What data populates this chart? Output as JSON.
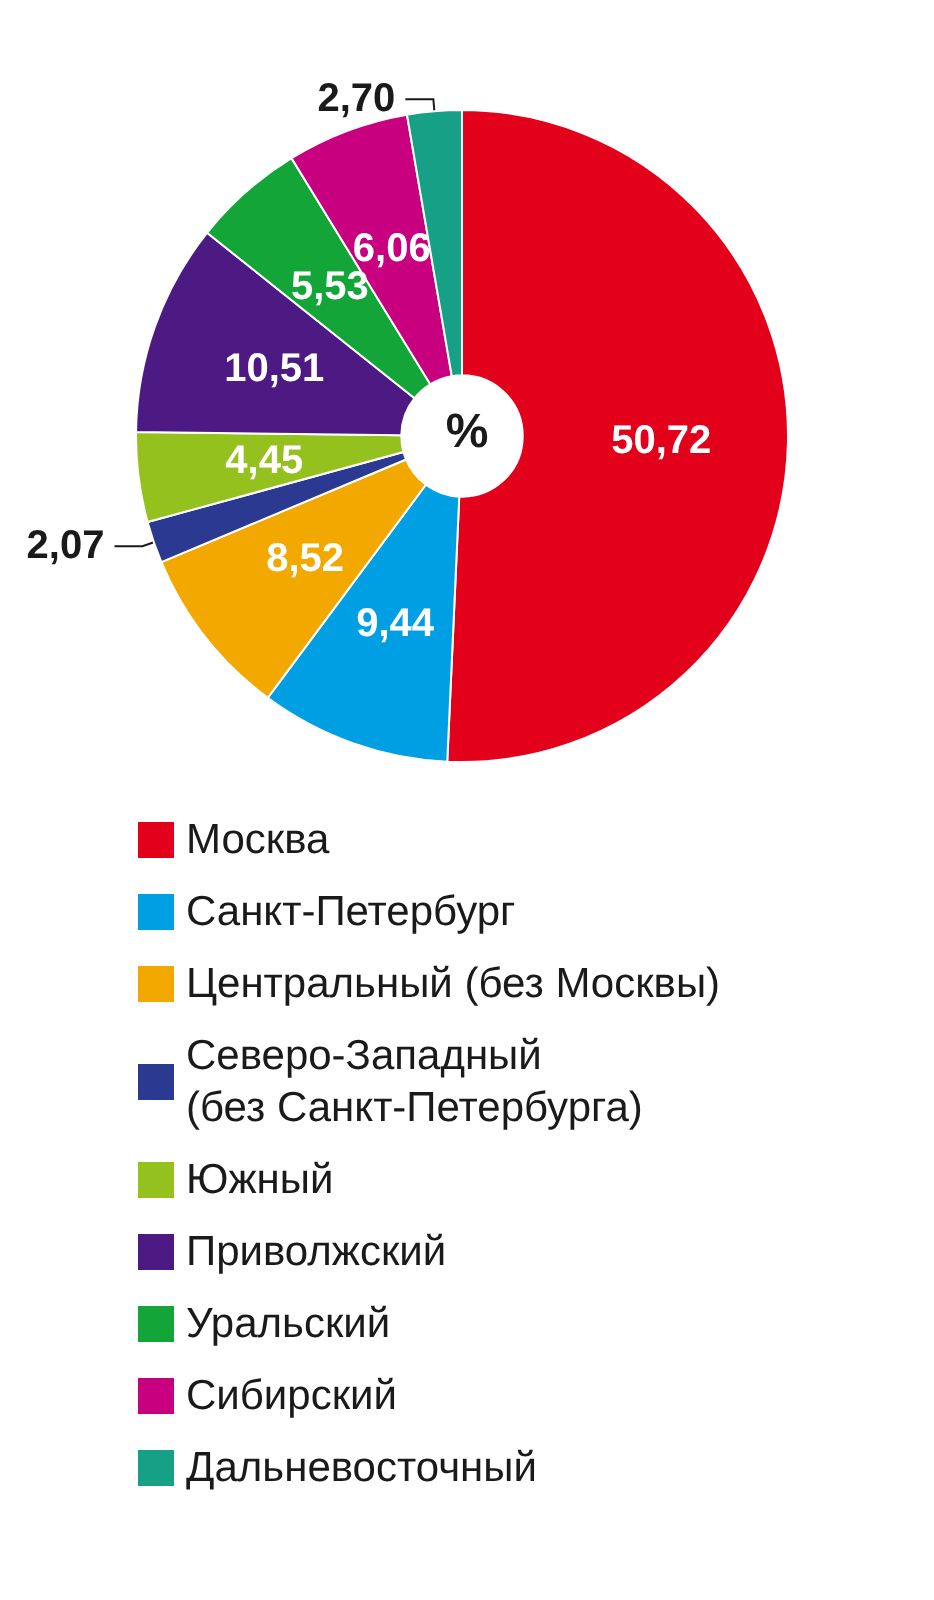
{
  "chart_data": {
    "type": "donut",
    "categories": [
      "Москва",
      "Санкт-Петербург",
      "Центральный (без Москвы)",
      "Северо-Западный\n(без Санкт-Петербурга)",
      "Южный",
      "Приволжский",
      "Уральский",
      "Сибирский",
      "Дальневосточный"
    ],
    "values": [
      50.72,
      9.44,
      8.52,
      2.07,
      4.45,
      10.51,
      5.53,
      6.06,
      2.7
    ],
    "value_labels": [
      "50,72",
      "9,44",
      "8,52",
      "2,07",
      "4,45",
      "10,51",
      "5,53",
      "6,06",
      "2,70"
    ],
    "colors": [
      "#e2001a",
      "#009fe3",
      "#f3a800",
      "#2b3990",
      "#95c11f",
      "#4c1a82",
      "#13a538",
      "#c8007f",
      "#16a085"
    ],
    "annotations": [
      "%"
    ],
    "legend": "bottom"
  }
}
